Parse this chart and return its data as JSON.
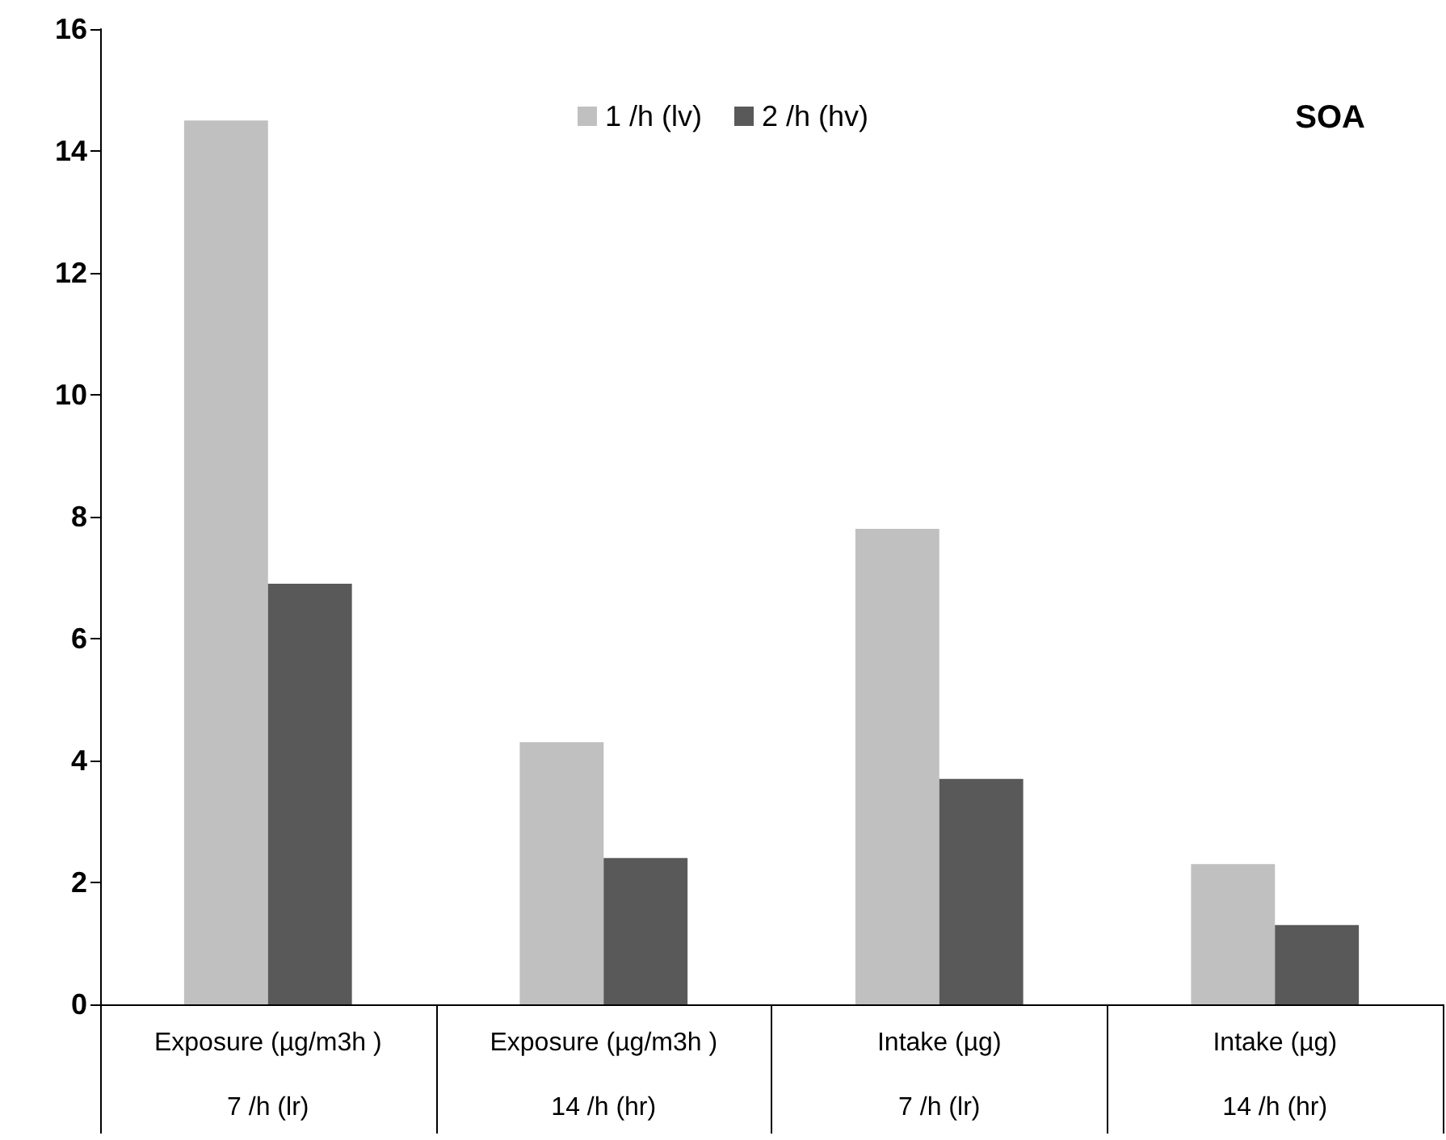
{
  "chart_data": {
    "type": "bar",
    "title": "SOA",
    "categories": [
      "Exposure (µg/m3h )\n7 /h (lr)",
      "Exposure (µg/m3h )\n14 /h (hr)",
      "Intake (µg)\n7 /h (lr)",
      "Intake (µg)\n14 /h (hr)"
    ],
    "series": [
      {
        "name": "1 /h (lv)",
        "color": "#c0c0c0",
        "values": [
          14.5,
          4.3,
          7.8,
          2.3
        ]
      },
      {
        "name": "2 /h (hv)",
        "color": "#595959",
        "values": [
          6.9,
          2.4,
          3.7,
          1.3
        ]
      }
    ],
    "ylim": [
      0,
      16
    ],
    "yticks": [
      0,
      2,
      4,
      6,
      8,
      10,
      12,
      14,
      16
    ],
    "grid": false,
    "legend": "top"
  }
}
